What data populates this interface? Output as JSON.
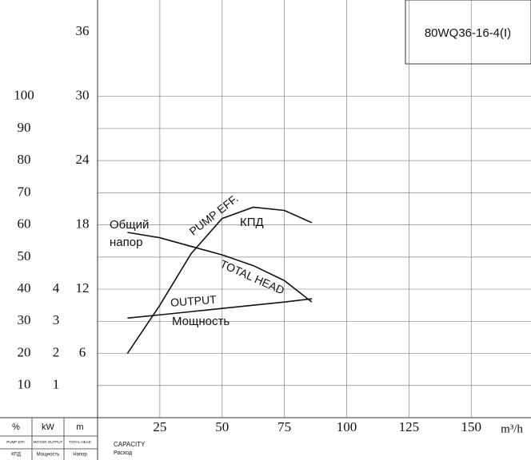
{
  "chart_data": {
    "type": "line",
    "model": "80WQ36-16-4(I)",
    "x_unit": "m³/h",
    "x_label": "CAPACITY",
    "x_label_ru": "Расход",
    "xlim": [
      0,
      174
    ],
    "xticks": [
      25,
      50,
      75,
      100,
      125,
      150
    ],
    "axes": [
      {
        "unit": "%",
        "name": "PUMP EFF.",
        "name_ru": "КПД",
        "ylim": [
          0,
          130
        ],
        "yticks": [
          10,
          20,
          30,
          40,
          50,
          60,
          70,
          80,
          90,
          100
        ]
      },
      {
        "unit": "kW",
        "name": "MOTOR OUTPUT",
        "name_ru": "Мощность",
        "ylim": [
          0,
          13
        ],
        "yticks": [
          1,
          2,
          3,
          4
        ]
      },
      {
        "unit": "m",
        "name": "TOTAL HEAD",
        "name_ru": "Напор",
        "ylim": [
          0,
          39
        ],
        "yticks": [
          6,
          12,
          18,
          24,
          30,
          36
        ]
      }
    ],
    "grid": true,
    "series": [
      {
        "name": "TOTAL HEAD",
        "name_ru": [
          "Общий",
          "напор"
        ],
        "axis": 2,
        "color": "#111111",
        "x": [
          12,
          25,
          37.5,
          50,
          62.5,
          75,
          86
        ],
        "values": [
          17.3,
          16.8,
          16,
          15.2,
          14.2,
          12.8,
          10.8
        ]
      },
      {
        "name": "PUMP EFF.",
        "name_ru": [
          "КПД"
        ],
        "axis": 0,
        "color": "#111111",
        "x": [
          12,
          25,
          37.5,
          50,
          62.5,
          75,
          86
        ],
        "values": [
          20,
          35,
          51,
          62,
          65.5,
          64.5,
          60.7
        ]
      },
      {
        "name": "OUTPUT",
        "name_ru": [
          "Мощность"
        ],
        "axis": 1,
        "color": "#111111",
        "x": [
          12,
          25,
          37.5,
          50,
          62.5,
          75,
          86
        ],
        "values": [
          3.1,
          3.2,
          3.3,
          3.4,
          3.5,
          3.6,
          3.7
        ]
      }
    ]
  }
}
